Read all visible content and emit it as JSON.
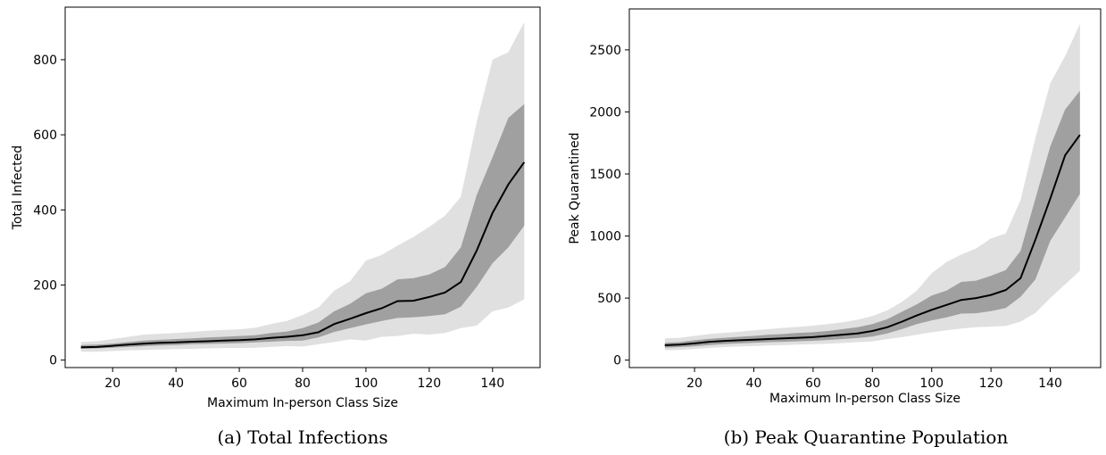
{
  "chart_data": [
    {
      "type": "line",
      "caption": "(a) Total Infections",
      "xlabel": "Maximum In-person Class Size",
      "ylabel": "Total Infected",
      "xlim": [
        5,
        155
      ],
      "ylim": [
        -20,
        940
      ],
      "xticks": [
        20,
        40,
        60,
        80,
        100,
        120,
        140
      ],
      "yticks": [
        0,
        200,
        400,
        600,
        800
      ],
      "grid": false,
      "colors": {
        "line": "#000000",
        "inner_band": "#a0a0a0",
        "outer_band": "#e0e0e0"
      },
      "x": [
        10,
        15,
        20,
        25,
        30,
        35,
        40,
        45,
        50,
        55,
        60,
        65,
        70,
        75,
        80,
        85,
        90,
        95,
        100,
        105,
        110,
        115,
        120,
        125,
        130,
        135,
        140,
        145,
        150
      ],
      "series": [
        {
          "role": "median",
          "values": [
            34,
            35,
            38,
            41,
            44,
            46,
            47,
            49,
            50,
            52,
            53,
            55,
            59,
            62,
            66,
            74,
            96,
            110,
            125,
            138,
            157,
            158,
            168,
            180,
            208,
            292,
            392,
            468,
            527
          ]
        },
        {
          "role": "inner_band_upper",
          "values": [
            40,
            41,
            44,
            48,
            52,
            54,
            56,
            58,
            60,
            62,
            64,
            66,
            72,
            76,
            85,
            100,
            130,
            150,
            178,
            190,
            215,
            218,
            228,
            248,
            300,
            440,
            540,
            645,
            682
          ]
        },
        {
          "role": "inner_band_lower",
          "values": [
            30,
            31,
            33,
            35,
            37,
            39,
            40,
            42,
            43,
            44,
            45,
            47,
            49,
            51,
            52,
            60,
            75,
            85,
            95,
            104,
            112,
            114,
            117,
            122,
            142,
            195,
            258,
            300,
            358
          ]
        },
        {
          "role": "outer_band_upper",
          "values": [
            48,
            50,
            56,
            62,
            68,
            70,
            72,
            75,
            78,
            80,
            82,
            86,
            96,
            104,
            120,
            140,
            185,
            210,
            265,
            280,
            305,
            328,
            355,
            385,
            435,
            635,
            800,
            820,
            900
          ]
        },
        {
          "role": "outer_band_lower",
          "values": [
            22,
            22,
            24,
            26,
            27,
            28,
            29,
            30,
            31,
            32,
            32,
            33,
            35,
            37,
            36,
            42,
            48,
            55,
            52,
            62,
            64,
            70,
            68,
            72,
            85,
            92,
            130,
            140,
            162
          ]
        }
      ]
    },
    {
      "type": "line",
      "caption": "(b) Peak Quarantine Population",
      "xlabel": "Maximum In-person Class Size",
      "ylabel": "Peak Quarantined",
      "xlim": [
        -2,
        157
      ],
      "ylim": [
        -60,
        2830
      ],
      "xticks": [
        20,
        40,
        60,
        80,
        100,
        120,
        140
      ],
      "yticks": [
        0,
        500,
        1000,
        1500,
        2000,
        2500
      ],
      "grid": false,
      "colors": {
        "line": "#000000",
        "inner_band": "#a0a0a0",
        "outer_band": "#e0e0e0"
      },
      "x": [
        10,
        15,
        20,
        25,
        30,
        35,
        40,
        45,
        50,
        55,
        60,
        65,
        70,
        75,
        80,
        85,
        90,
        95,
        100,
        105,
        110,
        115,
        120,
        125,
        130,
        135,
        140,
        145,
        150
      ],
      "series": [
        {
          "role": "median",
          "values": [
            120,
            125,
            135,
            148,
            155,
            160,
            165,
            170,
            175,
            180,
            185,
            195,
            205,
            215,
            235,
            265,
            310,
            360,
            405,
            445,
            485,
            500,
            525,
            565,
            660,
            970,
            1300,
            1650,
            1815
          ]
        },
        {
          "role": "inner_band_upper",
          "values": [
            140,
            145,
            160,
            172,
            180,
            188,
            195,
            205,
            210,
            220,
            225,
            235,
            250,
            265,
            290,
            330,
            390,
            450,
            520,
            560,
            630,
            640,
            680,
            725,
            880,
            1300,
            1720,
            2020,
            2170
          ]
        },
        {
          "role": "inner_band_lower",
          "values": [
            100,
            105,
            112,
            122,
            130,
            135,
            140,
            145,
            148,
            152,
            156,
            162,
            170,
            178,
            190,
            215,
            250,
            290,
            320,
            345,
            375,
            378,
            395,
            420,
            510,
            650,
            960,
            1150,
            1340
          ]
        },
        {
          "role": "outer_band_upper",
          "values": [
            175,
            180,
            195,
            210,
            220,
            228,
            240,
            250,
            260,
            268,
            278,
            290,
            305,
            325,
            355,
            400,
            470,
            560,
            700,
            790,
            850,
            900,
            980,
            1020,
            1290,
            1790,
            2230,
            2450,
            2710
          ]
        },
        {
          "role": "outer_band_lower",
          "values": [
            80,
            82,
            90,
            98,
            105,
            110,
            113,
            118,
            122,
            125,
            128,
            132,
            138,
            145,
            150,
            170,
            185,
            205,
            225,
            240,
            255,
            265,
            270,
            275,
            310,
            380,
            500,
            610,
            720
          ]
        }
      ]
    }
  ]
}
